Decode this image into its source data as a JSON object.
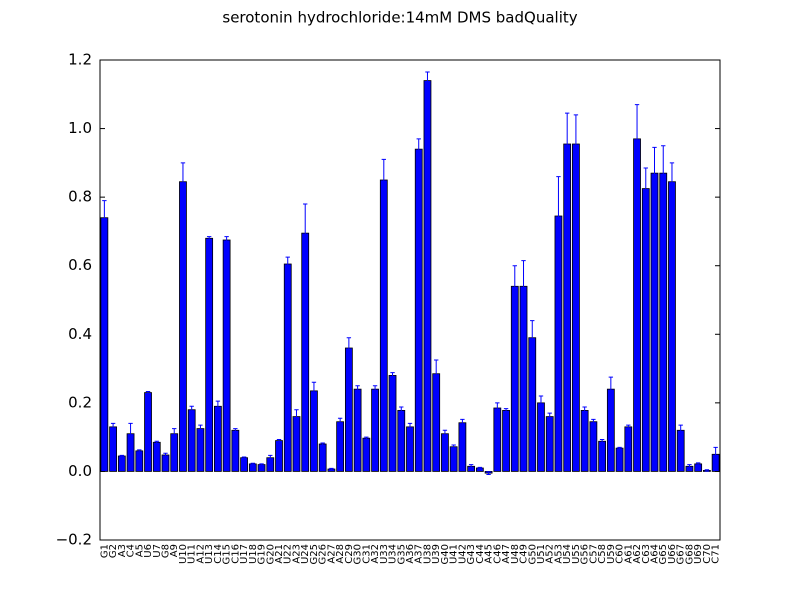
{
  "chart_data": {
    "type": "bar",
    "title": "serotonin hydrochloride:14mM  DMS  badQuality",
    "categories": [
      "G1",
      "G2",
      "A3",
      "C4",
      "A5",
      "U6",
      "U7",
      "G8",
      "A9",
      "U10",
      "U11",
      "A12",
      "U13",
      "C14",
      "G15",
      "C16",
      "U17",
      "U18",
      "G19",
      "G20",
      "A21",
      "U22",
      "A23",
      "U24",
      "G25",
      "G26",
      "A27",
      "A28",
      "C29",
      "G30",
      "C31",
      "A32",
      "U33",
      "U34",
      "G35",
      "A36",
      "A37",
      "U38",
      "U39",
      "G40",
      "U41",
      "U42",
      "G43",
      "C44",
      "A45",
      "C46",
      "A47",
      "U48",
      "C49",
      "G50",
      "U51",
      "A52",
      "A53",
      "U54",
      "U55",
      "G56",
      "C57",
      "C58",
      "U59",
      "C60",
      "A61",
      "A62",
      "C63",
      "A64",
      "G65",
      "U66",
      "G67",
      "G68",
      "U69",
      "C70",
      "C71"
    ],
    "values": [
      0.74,
      0.13,
      0.045,
      0.11,
      0.06,
      0.23,
      0.085,
      0.048,
      0.11,
      0.845,
      0.18,
      0.125,
      0.68,
      0.19,
      0.675,
      0.12,
      0.04,
      0.022,
      0.02,
      0.04,
      0.09,
      0.605,
      0.16,
      0.695,
      0.235,
      0.08,
      0.007,
      0.145,
      0.36,
      0.24,
      0.097,
      0.24,
      0.85,
      0.28,
      0.178,
      0.13,
      0.94,
      1.14,
      0.285,
      0.11,
      0.072,
      0.142,
      0.015,
      0.01,
      -0.005,
      0.185,
      0.178,
      0.54,
      0.54,
      0.39,
      0.2,
      0.16,
      0.745,
      0.955,
      0.955,
      0.178,
      0.145,
      0.088,
      0.24,
      0.068,
      0.13,
      0.97,
      0.825,
      0.87,
      0.87,
      0.845,
      0.12,
      0.015,
      0.022,
      0.003,
      0.05
    ],
    "errors": [
      0.05,
      0.01,
      0.002,
      0.03,
      0.003,
      0.003,
      0.003,
      0.005,
      0.015,
      0.055,
      0.01,
      0.01,
      0.005,
      0.015,
      0.01,
      0.005,
      0.002,
      0.002,
      0.002,
      0.007,
      0.003,
      0.02,
      0.02,
      0.085,
      0.025,
      0.003,
      0.002,
      0.01,
      0.03,
      0.01,
      0.003,
      0.01,
      0.06,
      0.008,
      0.01,
      0.01,
      0.03,
      0.025,
      0.04,
      0.01,
      0.005,
      0.01,
      0.005,
      0.002,
      0.004,
      0.015,
      0.005,
      0.06,
      0.075,
      0.05,
      0.02,
      0.01,
      0.115,
      0.09,
      0.085,
      0.01,
      0.007,
      0.005,
      0.035,
      0.002,
      0.005,
      0.1,
      0.06,
      0.075,
      0.08,
      0.055,
      0.015,
      0.005,
      0.003,
      0.002,
      0.02
    ],
    "color": "#0000ff",
    "error_color": "#0000ff",
    "ylim": [
      -0.2,
      1.2
    ],
    "yticks": [
      {
        "value": -0.2,
        "label": "−0.2"
      },
      {
        "value": 0,
        "label": "0.0"
      },
      0.2,
      0.4,
      0.6,
      0.8,
      {
        "value": 1,
        "label": "1.0"
      },
      1.2
    ]
  }
}
